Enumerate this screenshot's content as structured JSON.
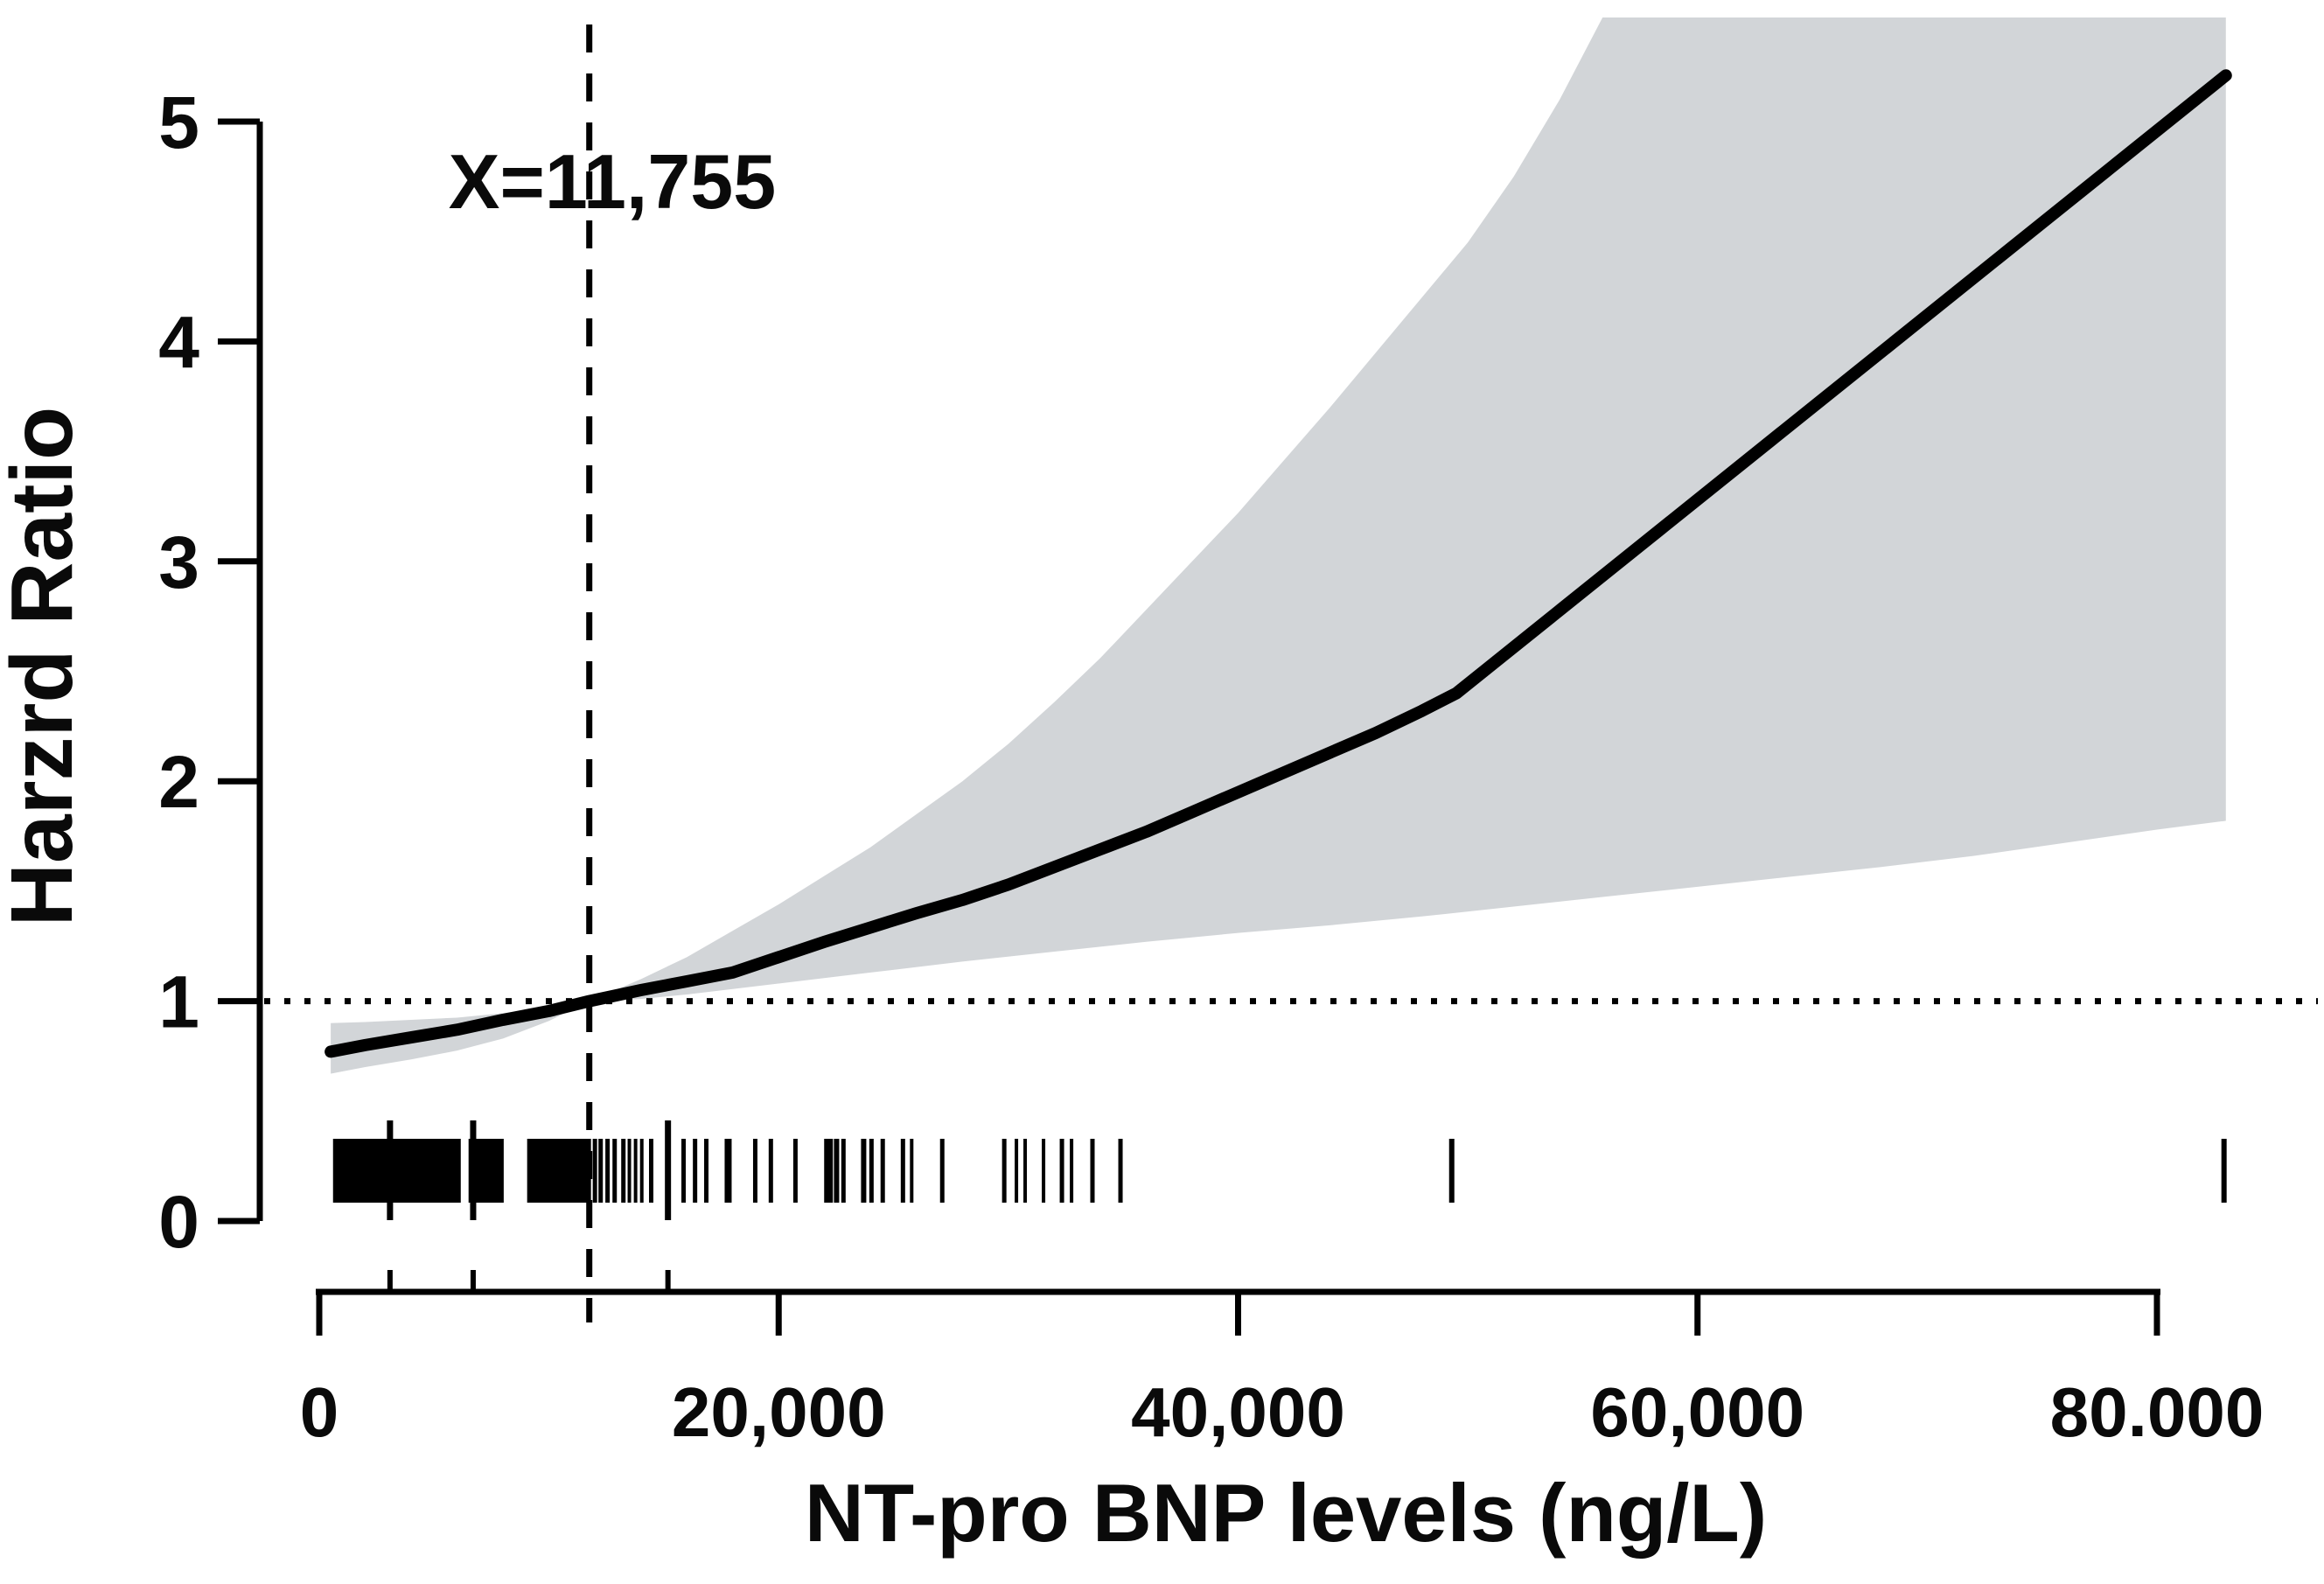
{
  "figure": {
    "background": "#ffffff"
  },
  "chart_data": {
    "type": "line",
    "title": "",
    "xlabel": "NT-pro BNP levels (ng/L)",
    "ylabel": "Harzrd Ratio",
    "annotation": "X=11,755",
    "x_unit": "ng/L",
    "xlim": [
      0,
      84000
    ],
    "ylim": [
      0,
      5.3
    ],
    "grid": false,
    "legend": "none",
    "x_ticks": [
      {
        "value": 0,
        "label": "0"
      },
      {
        "value": 20000,
        "label": "20,000"
      },
      {
        "value": 40000,
        "label": "40,000"
      },
      {
        "value": 60000,
        "label": "60,000"
      },
      {
        "value": 80000,
        "label": "80.000"
      }
    ],
    "y_ticks": [
      {
        "value": 0,
        "label": "0"
      },
      {
        "value": 1,
        "label": "1"
      },
      {
        "value": 2,
        "label": "2"
      },
      {
        "value": 3,
        "label": "3"
      },
      {
        "value": 4,
        "label": "4"
      },
      {
        "value": 5,
        "label": "5"
      }
    ],
    "reference": {
      "x": 11755,
      "hazard_ratio": 1,
      "label": "X=11,755"
    },
    "knot_ticks": [
      3080,
      6700,
      15180
    ],
    "series": [
      {
        "name": "hazard-ratio-estimate",
        "x": [
          500,
          2000,
          4000,
          6000,
          8000,
          10000,
          11755,
          14000,
          16000,
          18000,
          20000,
          22000,
          24000,
          26000,
          28000,
          30000,
          32000,
          34000,
          36000,
          38000,
          40000,
          42000,
          44000,
          46000,
          48000,
          49500,
          83000
        ],
        "y": [
          0.77,
          0.8,
          0.835,
          0.87,
          0.915,
          0.955,
          1.0,
          1.05,
          1.09,
          1.13,
          1.2,
          1.27,
          1.335,
          1.4,
          1.46,
          1.53,
          1.61,
          1.69,
          1.77,
          1.86,
          1.95,
          2.04,
          2.13,
          2.22,
          2.32,
          2.4,
          5.21
        ]
      }
    ],
    "ci_band": {
      "name": "95%-confidence-band",
      "upper_x": [
        500,
        2000,
        4000,
        6000,
        8000,
        10000,
        11755,
        14000,
        16000,
        18000,
        20000,
        22000,
        24000,
        26000,
        28000,
        30000,
        32000,
        34000,
        36000,
        38000,
        40000,
        42000,
        44000,
        46000,
        48000,
        50000,
        52000,
        54000,
        56000,
        58000,
        83000
      ],
      "upper_y": [
        0.9,
        0.905,
        0.915,
        0.925,
        0.945,
        0.97,
        1.0,
        1.1,
        1.2,
        1.32,
        1.44,
        1.57,
        1.7,
        1.85,
        2.0,
        2.17,
        2.36,
        2.56,
        2.78,
        3.0,
        3.22,
        3.46,
        3.7,
        3.95,
        4.2,
        4.45,
        4.75,
        5.1,
        5.5,
        5.9,
        8.0
      ],
      "lower_x": [
        500,
        2000,
        4000,
        6000,
        8000,
        10000,
        11755,
        14000,
        16000,
        18000,
        20000,
        24000,
        28000,
        32000,
        36000,
        40000,
        44000,
        48000,
        52000,
        56000,
        60000,
        64000,
        68000,
        72000,
        76000,
        80000,
        83000
      ],
      "lower_y": [
        0.67,
        0.7,
        0.735,
        0.775,
        0.83,
        0.91,
        1.0,
        1.01,
        1.03,
        1.055,
        1.08,
        1.13,
        1.18,
        1.225,
        1.27,
        1.31,
        1.345,
        1.385,
        1.43,
        1.475,
        1.52,
        1.565,
        1.61,
        1.66,
        1.72,
        1.78,
        1.82
      ]
    },
    "rug": {
      "dense_blocks": [
        [
          600,
          6160
        ],
        [
          6500,
          8030
        ],
        [
          9050,
          11830
        ]
      ],
      "tall_marks": [
        3080,
        6700,
        15180
      ],
      "marks": [
        [
          12000,
          5
        ],
        [
          12250,
          5
        ],
        [
          12550,
          5
        ],
        [
          12860,
          5
        ],
        [
          13240,
          5
        ],
        [
          13500,
          4
        ],
        [
          13770,
          4
        ],
        [
          14040,
          4
        ],
        [
          14450,
          5
        ],
        [
          15860,
          5
        ],
        [
          16360,
          5
        ],
        [
          16850,
          5
        ],
        [
          17800,
          8
        ],
        [
          18980,
          5
        ],
        [
          19660,
          5
        ],
        [
          20730,
          5
        ],
        [
          22170,
          10
        ],
        [
          22520,
          6
        ],
        [
          22820,
          5
        ],
        [
          23700,
          6
        ],
        [
          24040,
          5
        ],
        [
          24530,
          5
        ],
        [
          25410,
          5
        ],
        [
          25790,
          4
        ],
        [
          27120,
          5
        ],
        [
          29820,
          5
        ],
        [
          30350,
          4
        ],
        [
          30730,
          4
        ],
        [
          31530,
          4
        ],
        [
          32330,
          5
        ],
        [
          32750,
          4
        ],
        [
          33660,
          5
        ],
        [
          34880,
          5
        ],
        [
          49300,
          6
        ],
        [
          82920,
          6
        ]
      ]
    },
    "colors": {
      "band": "#d2d5d8",
      "line": "#000000",
      "text": "#0a0a0a",
      "background": "#ffffff"
    }
  }
}
